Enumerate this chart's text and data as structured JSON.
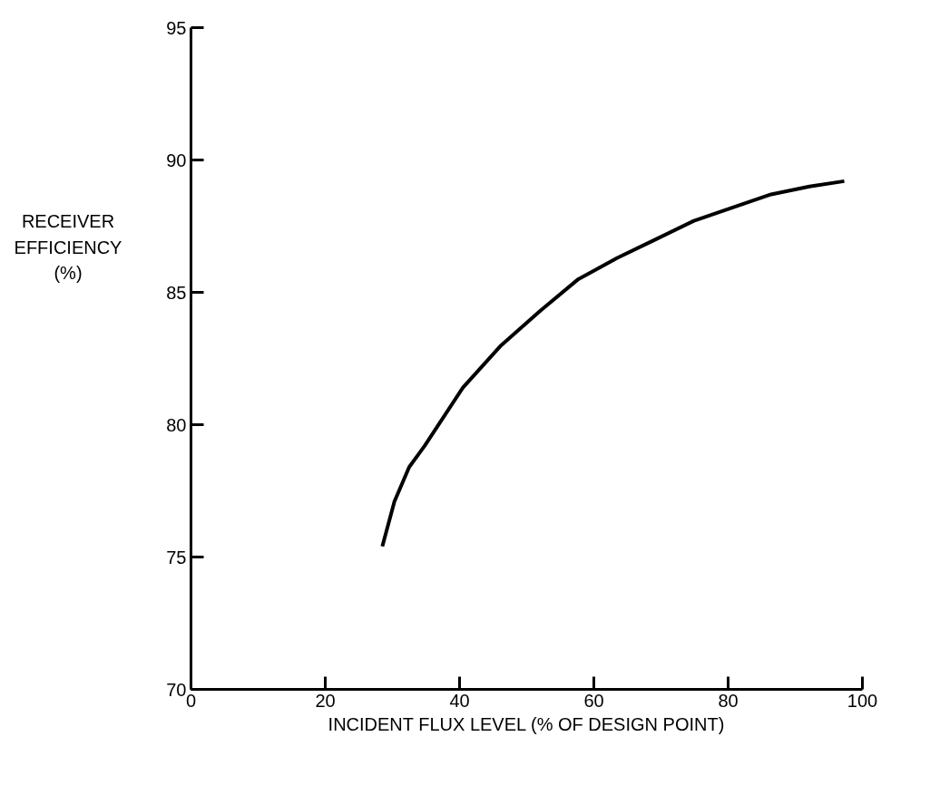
{
  "chart_data": {
    "type": "line",
    "xlabel": "INCIDENT FLUX LEVEL (% OF DESIGN POINT)",
    "ylabel": "RECEIVER\nEFFICIENCY\n(%)",
    "x": [
      28.5,
      30.3,
      32.5,
      34.8,
      40.5,
      46.2,
      52,
      57.7,
      63.5,
      69.2,
      74.9,
      80.6,
      86.4,
      92.1,
      97.3
    ],
    "series": [
      {
        "color": "#000000",
        "values": [
          75.4,
          77.1,
          78.4,
          79.2,
          81.4,
          83,
          84.3,
          85.5,
          86.3,
          87,
          87.7,
          88.2,
          88.7,
          89,
          89.2
        ]
      }
    ],
    "xlim": [
      0,
      100
    ],
    "ylim": [
      70,
      95
    ],
    "xticks": [
      0,
      20,
      40,
      60,
      80,
      100
    ],
    "yticks": [
      70,
      75,
      80,
      85,
      90,
      95
    ],
    "grid": false,
    "marker": "none",
    "line_style": "solid"
  }
}
